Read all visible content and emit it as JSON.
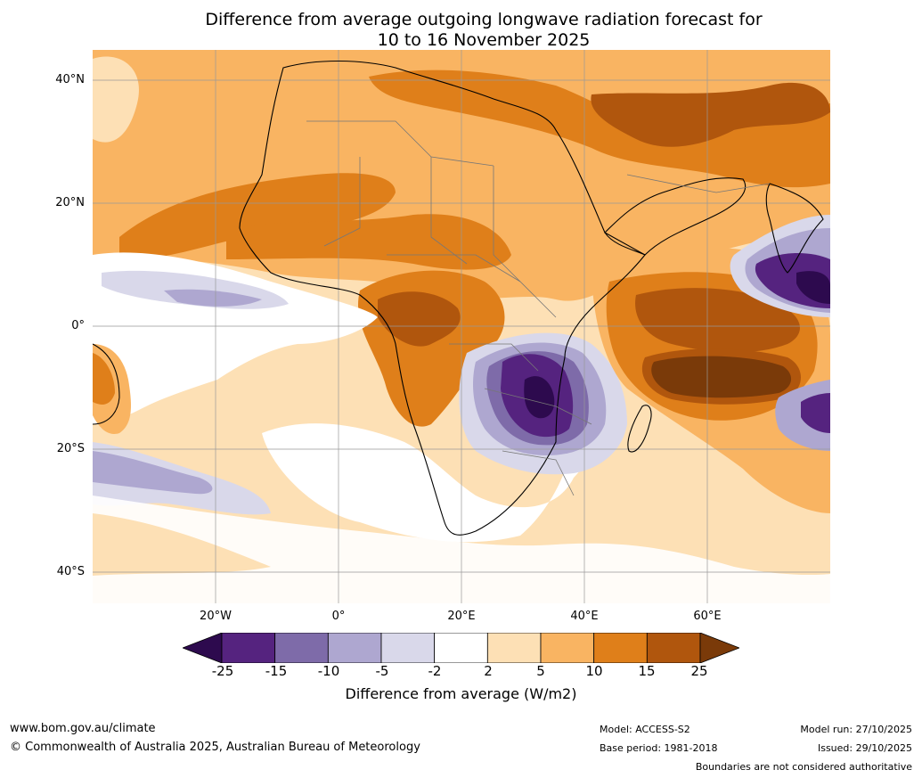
{
  "title": {
    "line1": "Difference from average outgoing longwave radiation forecast for",
    "line2": "10 to 16 November 2025"
  },
  "axes": {
    "lat_labels": [
      "40°N",
      "20°N",
      "0°",
      "20°S",
      "40°S"
    ],
    "lon_labels": [
      "20°W",
      "0°",
      "20°E",
      "40°E",
      "60°E"
    ],
    "lat_values": [
      40,
      20,
      0,
      -20,
      -40
    ],
    "lon_values": [
      -20,
      0,
      20,
      40,
      60
    ],
    "extent": {
      "lon_min": -40,
      "lon_max": 80,
      "lat_min": -45,
      "lat_max": 45
    }
  },
  "colorbar": {
    "title": "Difference from average (W/m2)",
    "ticks": [
      "-25",
      "-15",
      "-10",
      "-5",
      "-2",
      "2",
      "5",
      "10",
      "15",
      "25"
    ],
    "colors": [
      "#2d0a4e",
      "#55237f",
      "#7e6ba9",
      "#aea7d0",
      "#d9d8ea",
      "#ffffff",
      "#fde0b5",
      "#f9b462",
      "#df7f1a",
      "#b0560d",
      "#7a3a09"
    ]
  },
  "footer": {
    "website": "www.bom.gov.au/climate",
    "copyright": "© Commonwealth of Australia 2025, Australian Bureau of Meteorology",
    "model": "Model: ACCESS-S2",
    "base_period": "Base period: 1981-2018",
    "model_run": "Model run: 27/10/2025",
    "issued": "Issued: 29/10/2025",
    "boundaries": "Boundaries are not considered authoritative"
  }
}
